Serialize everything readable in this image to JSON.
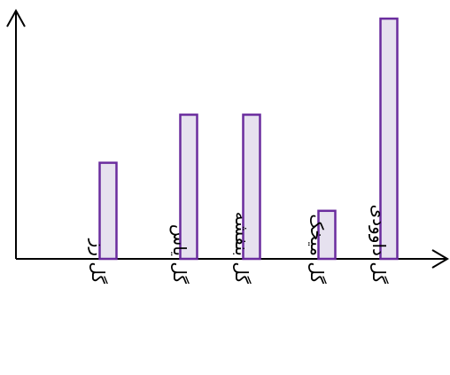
{
  "chart_data": {
    "type": "bar",
    "categories": [
      "گل رز",
      "گل یاس",
      "گل بنفشه",
      "گل میخک",
      "گل داوودی"
    ],
    "values": [
      4,
      6,
      6,
      2,
      10
    ],
    "title": "",
    "xlabel": "",
    "ylabel": "",
    "ylim": [
      0,
      10
    ],
    "grid": false,
    "colors": {
      "bar_fill": "#e6e1ef",
      "bar_stroke": "#6a2c9e",
      "axis": "#000000"
    }
  }
}
